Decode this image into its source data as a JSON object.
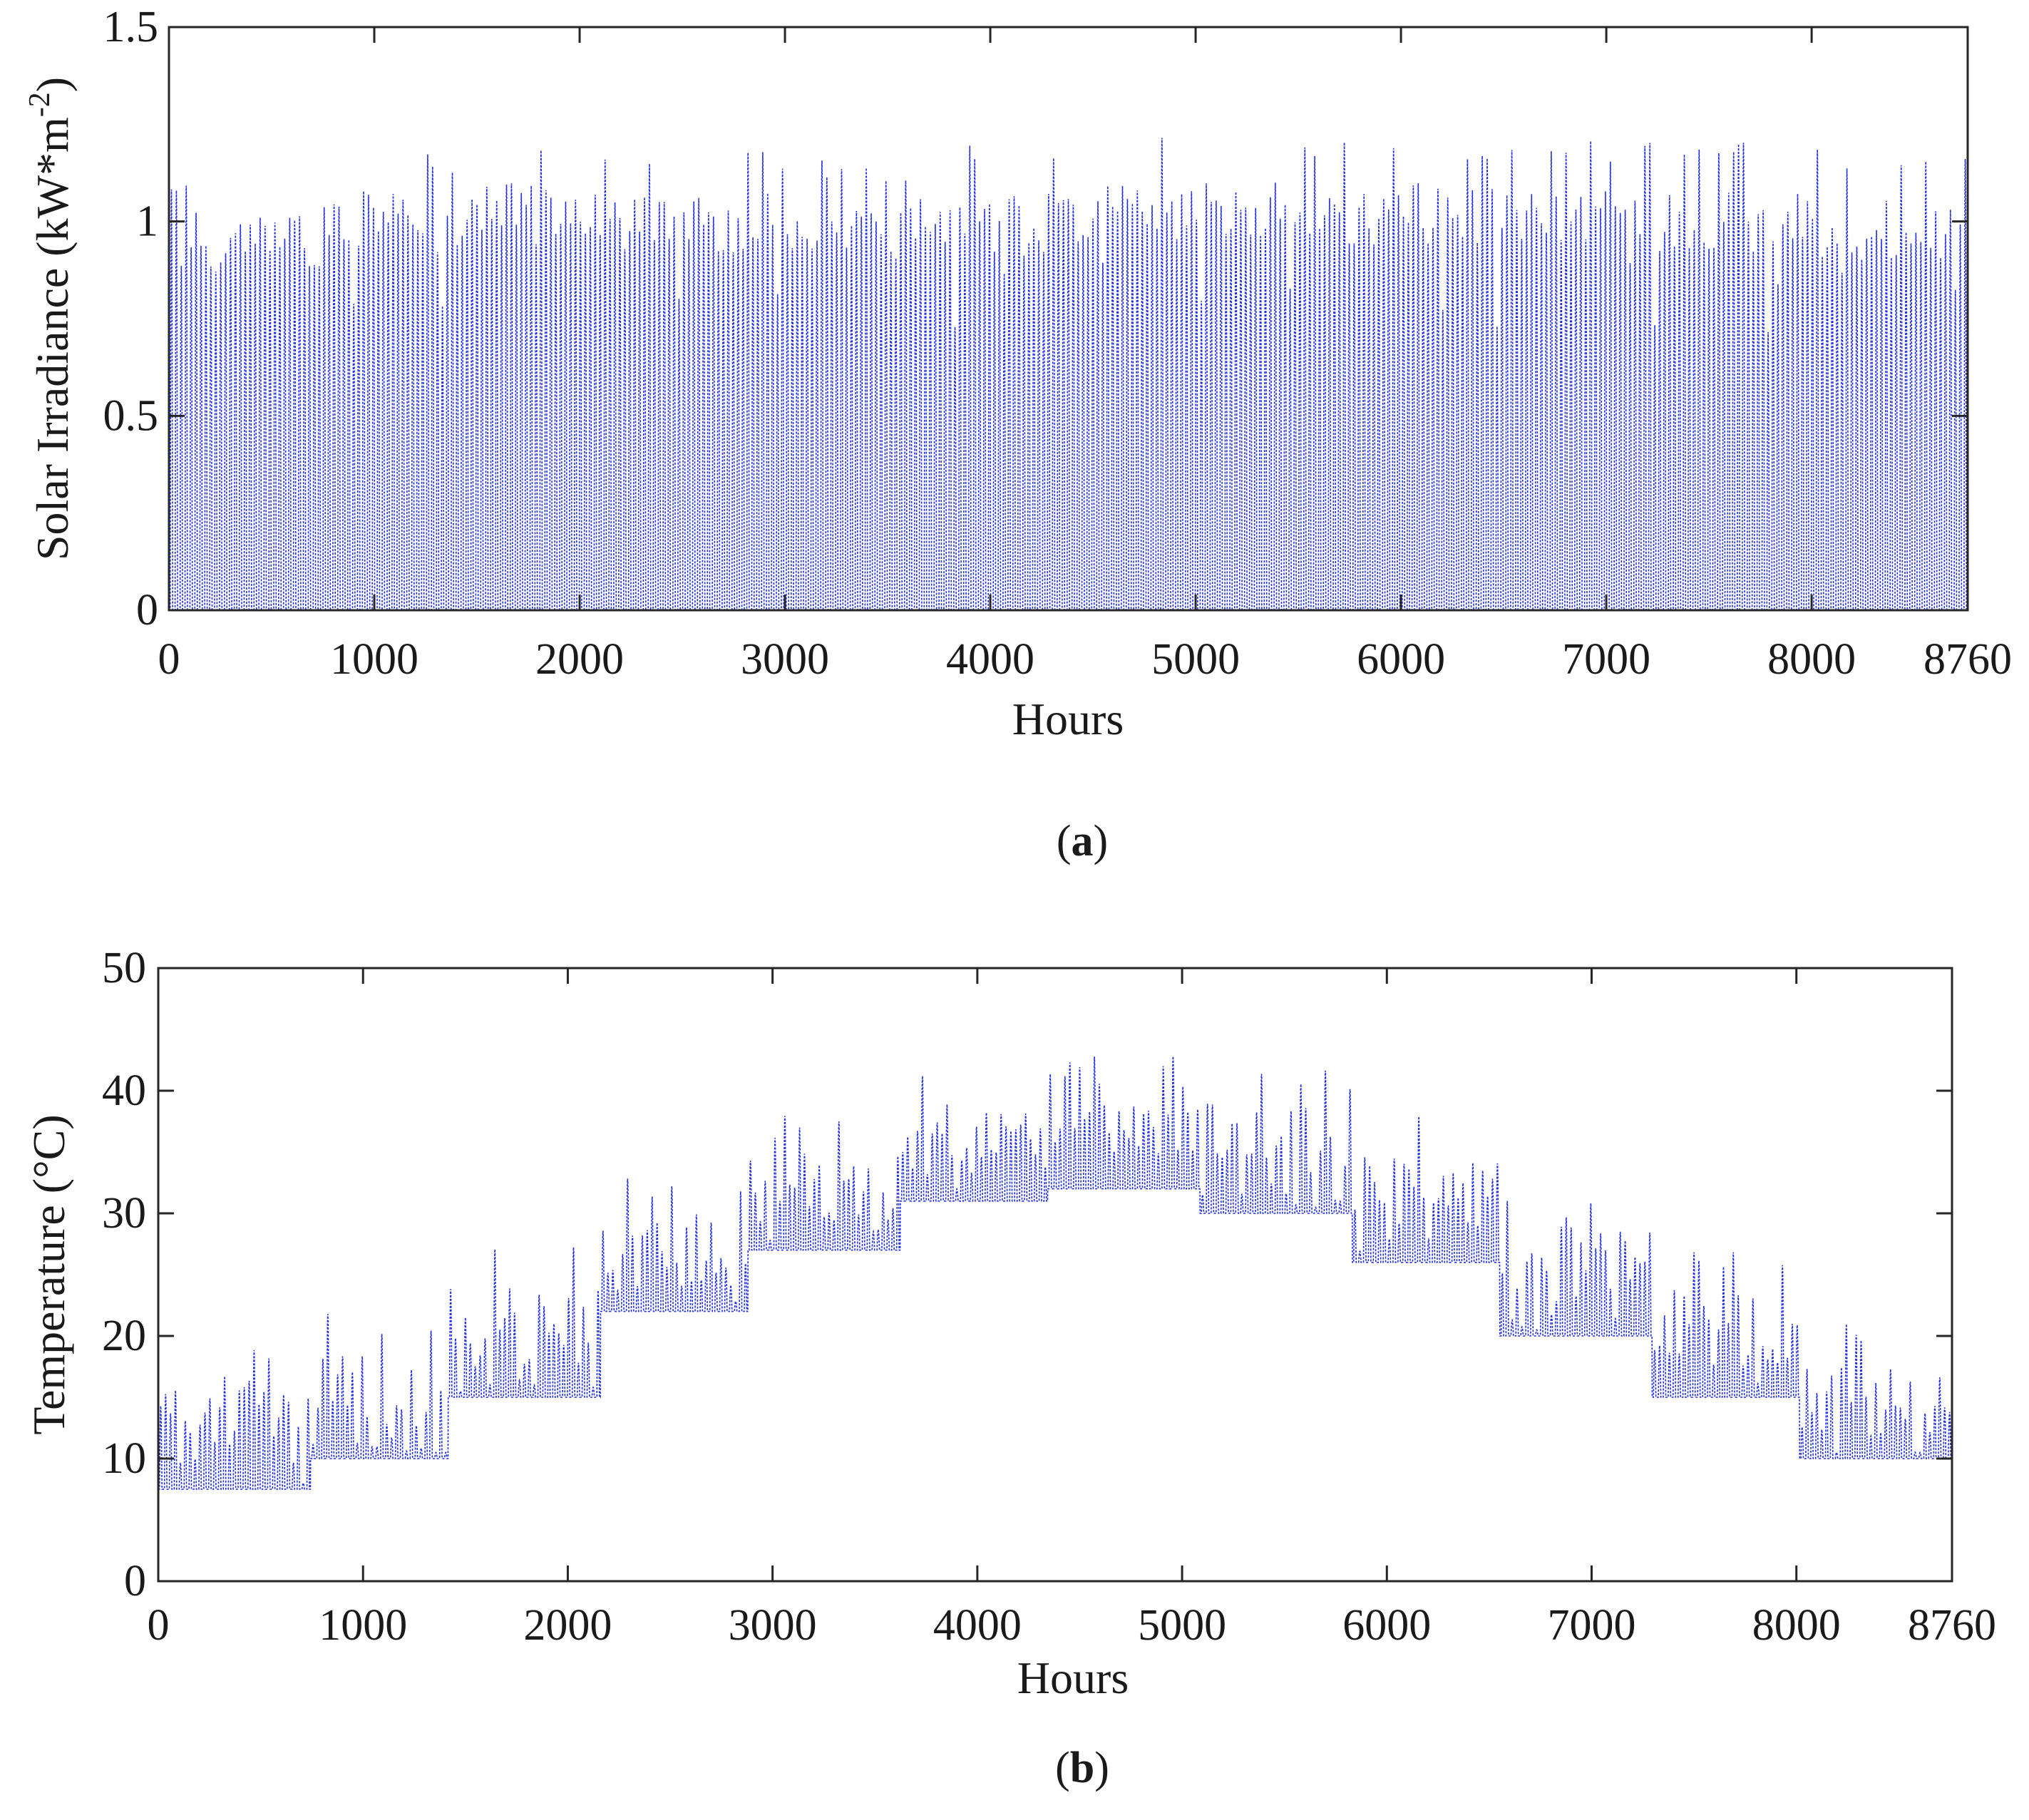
{
  "chart_data": [
    {
      "type": "line",
      "panel": "a",
      "title": "",
      "caption_open": "(",
      "caption_letter": "a",
      "caption_close": ")",
      "xlabel": "Hours",
      "ylabel": "Solar Irradiance (kW*m",
      "ylabel_superscript": "-2",
      "ylabel_close": ")",
      "xlim": [
        0,
        8760
      ],
      "ylim": [
        0,
        1.5
      ],
      "xticks": [
        0,
        1000,
        2000,
        3000,
        4000,
        5000,
        6000,
        7000,
        8000,
        8760
      ],
      "xtick_labels": [
        "0",
        "1000",
        "2000",
        "3000",
        "4000",
        "5000",
        "6000",
        "7000",
        "8000",
        "8760"
      ],
      "yticks": [
        0,
        0.5,
        1,
        1.5
      ],
      "ytick_labels": [
        "0",
        "0.5",
        "1",
        "1.5"
      ],
      "grid": false,
      "line_color": "#1f2ee6",
      "line_style": "dotted",
      "series": [
        {
          "name": "Solar irradiance",
          "description": "hourly profile, 0 at night, daily peaks",
          "x_start": 0,
          "x_end": 8760,
          "hours_per_day": 24,
          "night_value": 0,
          "monthly_peak_envelope": [
            1.05,
            1.12,
            1.15,
            1.12,
            1.1,
            1.15,
            1.18,
            1.15,
            1.15,
            1.15,
            1.15,
            1.12
          ],
          "monthly_mean_peak": [
            0.95,
            1.0,
            1.02,
            1.0,
            0.98,
            1.0,
            1.02,
            1.02,
            1.02,
            1.0,
            1.0,
            0.98
          ]
        }
      ]
    },
    {
      "type": "line",
      "panel": "b",
      "title": "",
      "caption_open": "(",
      "caption_letter": "b",
      "caption_close": ")",
      "xlabel": "Hours",
      "ylabel": "Temperature (°C)",
      "xlim": [
        0,
        8760
      ],
      "ylim": [
        0,
        50
      ],
      "xticks": [
        0,
        1000,
        2000,
        3000,
        4000,
        5000,
        6000,
        7000,
        8000,
        8760
      ],
      "xtick_labels": [
        "0",
        "1000",
        "2000",
        "3000",
        "4000",
        "5000",
        "6000",
        "7000",
        "8000",
        "8760"
      ],
      "yticks": [
        0,
        10,
        20,
        30,
        40,
        50
      ],
      "ytick_labels": [
        "0",
        "10",
        "20",
        "30",
        "40",
        "50"
      ],
      "grid": false,
      "line_color": "#1f2ee6",
      "line_style": "dotted",
      "series": [
        {
          "name": "Temperature",
          "description": "hourly profile with monthly minimum baseline and daily peaks",
          "month_boundaries_hours": [
            0,
            744,
            1416,
            2160,
            2880,
            3624,
            4344,
            5088,
            5832,
            6552,
            7296,
            8016,
            8760
          ],
          "monthly_min": [
            7.5,
            10,
            15,
            22,
            27,
            31,
            32,
            30,
            26,
            20,
            15,
            10
          ],
          "monthly_max": [
            20,
            22,
            27.5,
            33,
            38,
            42,
            43,
            42,
            38,
            31.5,
            27.5,
            21
          ],
          "monthly_mean_peak": [
            14,
            16,
            21,
            27,
            32,
            36,
            38,
            36,
            32,
            26,
            21,
            15
          ]
        }
      ]
    }
  ]
}
